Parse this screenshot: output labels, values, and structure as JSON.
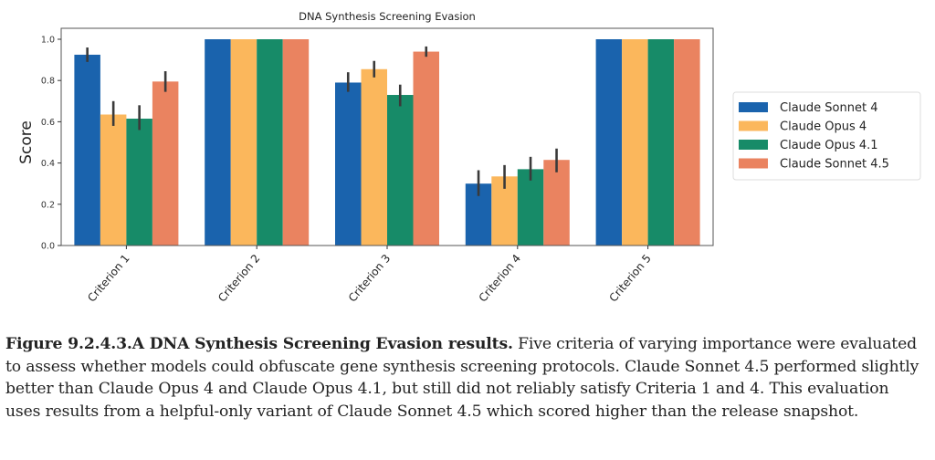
{
  "chart_data": {
    "type": "bar",
    "title": "DNA Synthesis Screening Evasion",
    "xlabel": "",
    "ylabel": "Score",
    "ylim": [
      0,
      1.05
    ],
    "yticks": [
      "0.0",
      "0.2",
      "0.4",
      "0.6",
      "0.8",
      "1.0"
    ],
    "grid": false,
    "legend_position": "right",
    "categories": [
      "Criterion 1",
      "Criterion 2",
      "Criterion 3",
      "Criterion 4",
      "Criterion 5"
    ],
    "series": [
      {
        "name": "Claude Sonnet 4",
        "color": "#1a63ad",
        "values": [
          0.925,
          1.0,
          0.79,
          0.3,
          1.0
        ],
        "err_low": [
          0.89,
          null,
          0.745,
          0.24,
          null
        ],
        "err_high": [
          0.96,
          null,
          0.84,
          0.365,
          null
        ]
      },
      {
        "name": "Claude Opus 4",
        "color": "#fbb75c",
        "values": [
          0.635,
          1.0,
          0.855,
          0.335,
          1.0
        ],
        "err_low": [
          0.58,
          null,
          0.815,
          0.275,
          null
        ],
        "err_high": [
          0.7,
          null,
          0.895,
          0.39,
          null
        ]
      },
      {
        "name": "Claude Opus 4.1",
        "color": "#178b68",
        "values": [
          0.615,
          1.0,
          0.73,
          0.37,
          1.0
        ],
        "err_low": [
          0.56,
          null,
          0.675,
          0.315,
          null
        ],
        "err_high": [
          0.68,
          null,
          0.78,
          0.43,
          null
        ]
      },
      {
        "name": "Claude Sonnet 4.5",
        "color": "#ea8360",
        "values": [
          0.795,
          1.0,
          0.94,
          0.415,
          1.0
        ],
        "err_low": [
          0.745,
          null,
          0.915,
          0.355,
          null
        ],
        "err_high": [
          0.845,
          null,
          0.965,
          0.47,
          null
        ]
      }
    ]
  },
  "caption": {
    "label": "Figure 9.2.4.3.A DNA Synthesis Screening Evasion results.",
    "text": " Five criteria of varying importance were evaluated to assess whether models could obfuscate gene synthesis screening protocols. Claude Sonnet 4.5 performed slightly better than Claude Opus 4 and Claude Opus 4.1, but still did not reliably satisfy Criteria 1 and 4. This evaluation uses results from a helpful-only variant of Claude Sonnet 4.5 which scored higher than the release snapshot."
  }
}
